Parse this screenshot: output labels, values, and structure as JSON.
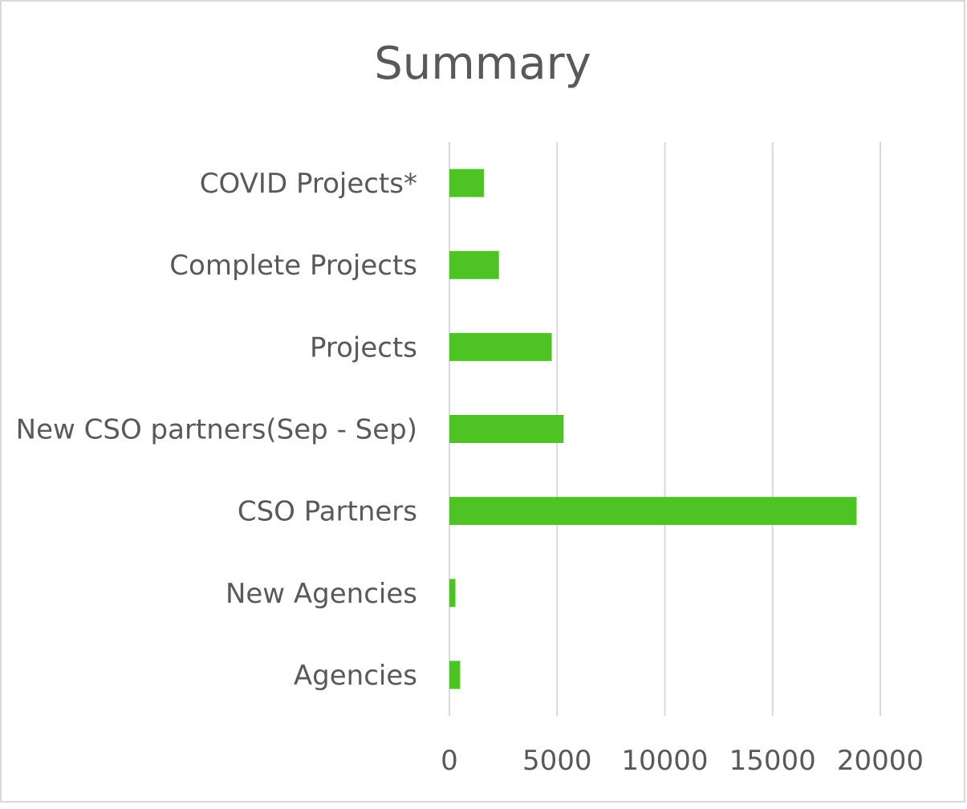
{
  "chart_data": {
    "type": "bar",
    "orientation": "horizontal",
    "title": "Summary",
    "categories": [
      "Agencies",
      "New Agencies",
      "CSO Partners",
      "New CSO partners(Sep - Sep)",
      "Projects",
      "Complete Projects",
      "COVID Projects*"
    ],
    "values": [
      500,
      280,
      18900,
      5300,
      4750,
      2300,
      1600
    ],
    "xlim": [
      0,
      20000
    ],
    "xticks": [
      0,
      5000,
      10000,
      15000,
      20000
    ],
    "xtick_labels": [
      "0",
      "5000",
      "10000",
      "15000",
      "20000"
    ],
    "grid": "vertical",
    "bar_color": "#4dc423",
    "xlabel": "",
    "ylabel": ""
  }
}
